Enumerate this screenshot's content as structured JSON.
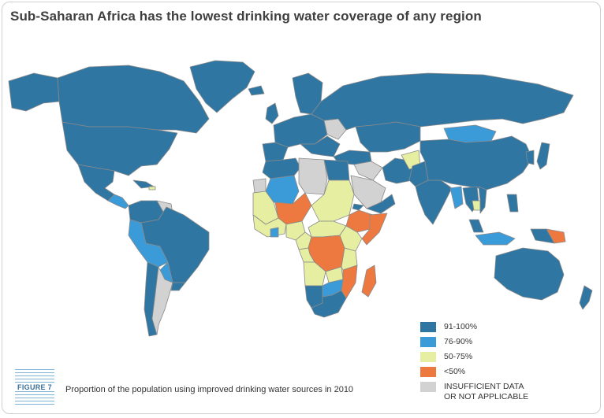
{
  "title": "Sub-Saharan Africa has the lowest drinking water coverage of any region",
  "figure_label": "FIGURE 7",
  "caption": "Proportion of the population using improved drinking water sources in 2010",
  "colors": {
    "c91_100": "#2f76a3",
    "c76_90": "#3b9ad8",
    "c50_75": "#e6eea2",
    "clt50": "#ee7940",
    "insufficient": "#d2d2d2",
    "border": "#8a8a8a"
  },
  "legend": [
    {
      "label": "91-100%",
      "color_key": "c91_100"
    },
    {
      "label": "76-90%",
      "color_key": "c76_90"
    },
    {
      "label": "50-75%",
      "color_key": "c50_75"
    },
    {
      "label": "<50%",
      "color_key": "clt50"
    },
    {
      "label": "INSUFFICIENT DATA OR NOT APPLICABLE",
      "color_key": "insufficient"
    }
  ]
}
